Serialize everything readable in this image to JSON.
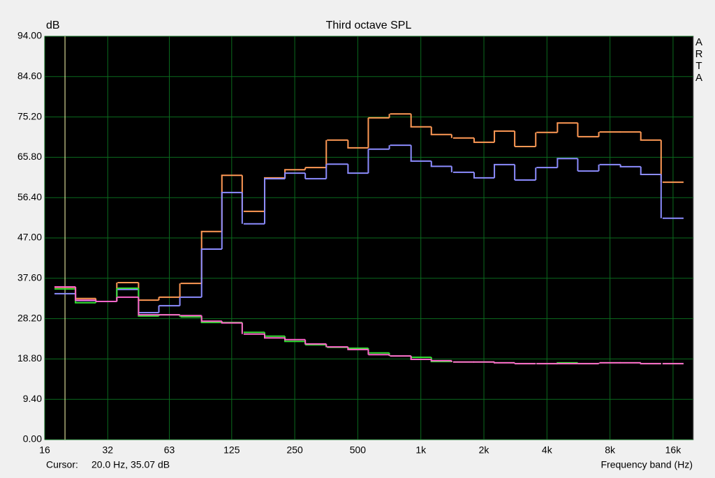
{
  "chart_data": {
    "type": "step",
    "title": "Third octave SPL",
    "y_label": "dB",
    "x_label": "Frequency band (Hz)",
    "brand": "ARTA",
    "cursor_label": "Cursor:",
    "cursor_text": "20.0 Hz, 35.07 dB",
    "cursor_x": 20,
    "cursor_color": "#ffffb0",
    "log_x": true,
    "grid": true,
    "xlim": [
      16,
      20000
    ],
    "ylim": [
      0,
      94
    ],
    "xticks": [
      16,
      32,
      63,
      125,
      250,
      500,
      {
        "value": 1000,
        "label": "1k"
      },
      {
        "value": 2000,
        "label": "2k"
      },
      {
        "value": 4000,
        "label": "4k"
      },
      {
        "value": 8000,
        "label": "8k"
      },
      {
        "value": 16000,
        "label": "16k"
      }
    ],
    "yticks": [
      {
        "value": 0,
        "label": "0.00"
      },
      {
        "value": 9.4,
        "label": "9.40"
      },
      {
        "value": 18.8,
        "label": "18.80"
      },
      {
        "value": 28.2,
        "label": "28.20"
      },
      {
        "value": 37.6,
        "label": "37.60"
      },
      {
        "value": 47,
        "label": "47.00"
      },
      {
        "value": 56.4,
        "label": "56.40"
      },
      {
        "value": 65.8,
        "label": "65.80"
      },
      {
        "value": 75.2,
        "label": "75.20"
      },
      {
        "value": 84.6,
        "label": "84.60"
      },
      {
        "value": 94,
        "label": "94.00"
      }
    ],
    "x": [
      20,
      25,
      31.5,
      40,
      50,
      63,
      80,
      100,
      125,
      160,
      200,
      250,
      315,
      400,
      500,
      630,
      800,
      1000,
      1250,
      1600,
      2000,
      2500,
      3150,
      4000,
      5000,
      6300,
      8000,
      10000,
      12500,
      16000
    ],
    "series": [
      {
        "color": "#ff9955",
        "values": [
          35.5,
          32.9,
          32.2,
          36.6,
          32.5,
          33.2,
          36.4,
          48.5,
          61.6,
          53.2,
          61.0,
          62.9,
          63.4,
          69.8,
          68.0,
          75.0,
          75.9,
          72.9,
          71.1,
          70.3,
          69.3,
          71.9,
          68.3,
          71.6,
          73.8,
          70.6,
          71.7,
          71.7,
          69.8,
          60.0
        ]
      },
      {
        "color": "#8c8cff",
        "values": [
          34.0,
          32.4,
          32.2,
          35.0,
          29.6,
          31.2,
          33.2,
          44.4,
          57.6,
          50.3,
          60.8,
          62.1,
          60.8,
          64.2,
          62.1,
          67.7,
          68.6,
          64.9,
          63.7,
          62.3,
          61.0,
          64.1,
          60.5,
          63.4,
          65.5,
          62.6,
          64.1,
          63.6,
          61.8,
          51.6
        ]
      },
      {
        "color": "#33dd33",
        "values": [
          35.1,
          31.9,
          32.2,
          35.3,
          28.8,
          29.1,
          28.6,
          27.3,
          27.3,
          25.0,
          24.1,
          22.9,
          22.1,
          21.5,
          21.3,
          20.2,
          19.5,
          19.2,
          18.2,
          18.1,
          18.1,
          17.9,
          17.7,
          17.7,
          17.9,
          17.7,
          17.9,
          17.9,
          17.7,
          17.7
        ]
      },
      {
        "color": "#ff66cc",
        "values": [
          35.6,
          32.5,
          32.2,
          33.2,
          29.1,
          29.1,
          28.9,
          27.6,
          27.2,
          24.6,
          23.7,
          23.3,
          22.3,
          21.6,
          21.0,
          19.8,
          19.5,
          18.7,
          18.4,
          18.1,
          18.1,
          17.9,
          17.7,
          17.7,
          17.7,
          17.7,
          17.9,
          17.9,
          17.7,
          17.7
        ]
      }
    ]
  }
}
